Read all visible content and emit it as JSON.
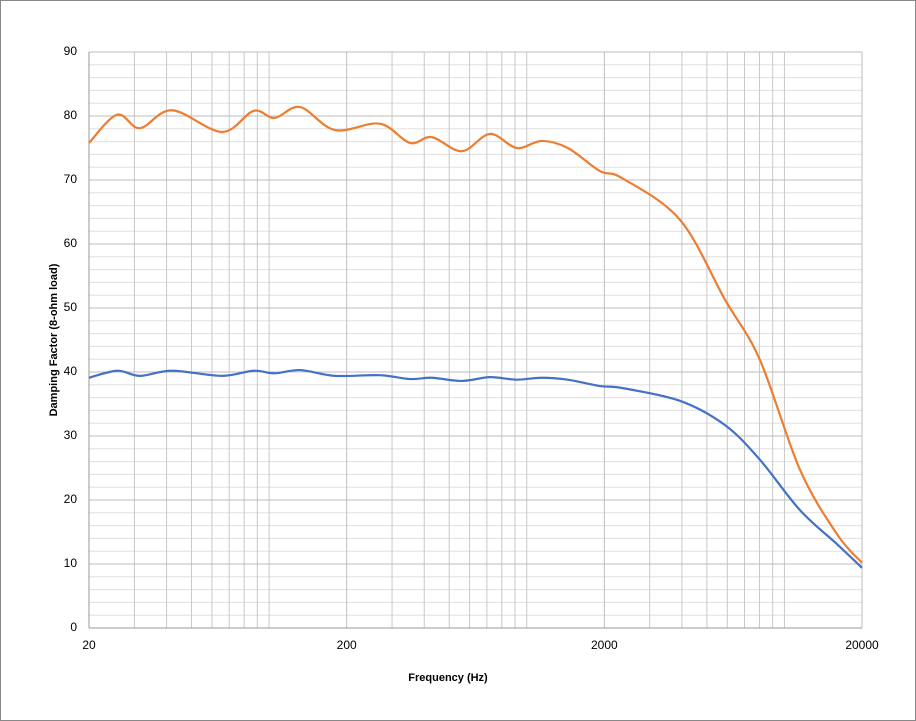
{
  "chart_data": {
    "type": "line",
    "xlabel": "Frequency (Hz)",
    "ylabel": "Damping Factor (8-ohm load)",
    "x": [
      20,
      25.7,
      31.5,
      42,
      65.6,
      87,
      105,
      132,
      180,
      269,
      352,
      428,
      560,
      720,
      914,
      1143,
      1443,
      1922,
      2340,
      3930,
      5880,
      8030,
      11500,
      16100,
      20000
    ],
    "series": [
      {
        "color": "#ed7d31",
        "values": [
          75.8,
          80.2,
          78.1,
          80.9,
          77.5,
          80.8,
          79.7,
          81.4,
          77.8,
          78.8,
          75.8,
          76.7,
          74.5,
          77.2,
          75,
          76.1,
          75,
          71.4,
          70.3,
          63.8,
          51.3,
          41.9,
          24.7,
          14.5,
          10.2
        ]
      },
      {
        "color": "#4472c4",
        "values": [
          39.1,
          40.2,
          39.4,
          40.2,
          39.4,
          40.2,
          39.8,
          40.3,
          39.4,
          39.5,
          38.9,
          39.1,
          38.6,
          39.2,
          38.8,
          39.1,
          38.8,
          37.8,
          37.5,
          35.5,
          31.7,
          26.3,
          18.4,
          13,
          9.4
        ]
      }
    ],
    "xlog": true,
    "xlim": [
      20,
      20000
    ],
    "xticks": [
      20,
      200,
      2000,
      20000
    ],
    "xgrid": [
      30,
      40,
      50,
      60,
      70,
      80,
      90,
      100,
      300,
      400,
      500,
      600,
      700,
      800,
      900,
      1000,
      3000,
      4000,
      5000,
      6000,
      7000,
      8000,
      9000,
      10000
    ],
    "ylim": [
      0,
      90
    ],
    "yticks": [
      0,
      10,
      20,
      30,
      40,
      50,
      60,
      70,
      80,
      90
    ],
    "yminor": [
      2,
      4,
      6,
      8,
      12,
      14,
      16,
      18,
      22,
      24,
      26,
      28,
      32,
      34,
      36,
      38,
      42,
      44,
      46,
      48,
      52,
      54,
      56,
      58,
      62,
      64,
      66,
      68,
      72,
      74,
      76,
      78,
      82,
      84,
      86,
      88
    ],
    "grid": true
  }
}
